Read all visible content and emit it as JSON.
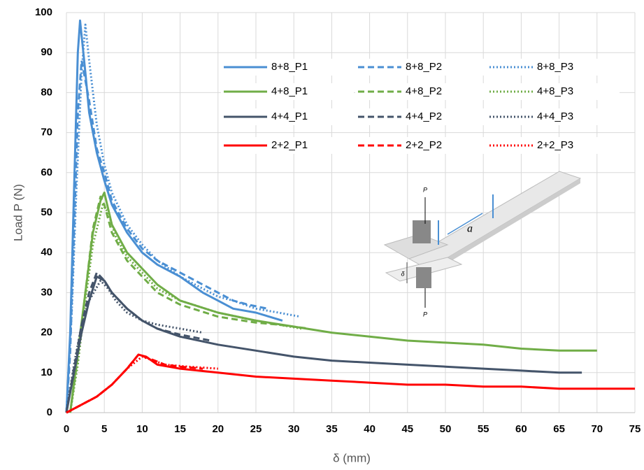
{
  "chart_data": {
    "type": "line",
    "x_label": "δ (mm)",
    "y_label": "Load P (N)",
    "xlim": [
      0,
      75
    ],
    "ylim": [
      0,
      100
    ],
    "xticks": [
      0,
      5,
      10,
      15,
      20,
      25,
      30,
      35,
      40,
      45,
      50,
      55,
      60,
      65,
      70,
      75
    ],
    "yticks": [
      0,
      10,
      20,
      30,
      40,
      50,
      60,
      70,
      80,
      90,
      100
    ],
    "grid": true,
    "series": [
      {
        "name": "8+8_P1",
        "color": "#4a8fd3",
        "dash": "solid",
        "x": [
          0,
          0.5,
          1,
          1.5,
          1.8,
          2.5,
          3,
          4,
          5,
          6,
          8,
          10,
          12,
          15,
          18,
          20,
          22,
          25,
          28.5
        ],
        "values": [
          0,
          20,
          55,
          90,
          98,
          85,
          75,
          65,
          58,
          52,
          45,
          40,
          37,
          34,
          30,
          28,
          26,
          25,
          23
        ]
      },
      {
        "name": "8+8_P2",
        "color": "#4a8fd3",
        "dash": "dashed",
        "x": [
          0,
          0.5,
          1,
          1.5,
          2,
          3,
          4,
          5,
          6,
          8,
          10,
          12,
          15,
          18,
          20,
          22,
          24,
          26.5
        ],
        "values": [
          0,
          15,
          45,
          75,
          88,
          78,
          66,
          60,
          53,
          46,
          41,
          38,
          35,
          32,
          30,
          28,
          27,
          26
        ]
      },
      {
        "name": "8+8_P3",
        "color": "#4a8fd3",
        "dash": "dotted",
        "x": [
          0,
          0.7,
          1.3,
          2,
          2.5,
          3,
          4,
          5,
          6,
          8,
          10,
          12,
          15,
          18,
          20,
          22,
          25,
          28,
          30.8
        ],
        "values": [
          0,
          25,
          55,
          85,
          97,
          88,
          72,
          62,
          55,
          47,
          42,
          38,
          34,
          31,
          29,
          28,
          26,
          25,
          24
        ]
      },
      {
        "name": "4+8_P1",
        "color": "#70ad47",
        "dash": "solid",
        "x": [
          0.5,
          1.5,
          2.5,
          3.5,
          4.5,
          5,
          6,
          8,
          10,
          12,
          15,
          20,
          25,
          30,
          35,
          40,
          45,
          50,
          55,
          60,
          65,
          70
        ],
        "values": [
          0,
          15,
          30,
          45,
          53,
          55,
          47,
          40,
          36,
          32,
          28,
          25,
          23,
          21.5,
          20,
          19,
          18,
          17.5,
          17,
          16,
          15.5,
          15.5
        ]
      },
      {
        "name": "4+8_P2",
        "color": "#70ad47",
        "dash": "dashed",
        "x": [
          0.5,
          1.5,
          2.5,
          3.5,
          4.5,
          5,
          6,
          8,
          10,
          12,
          15,
          20,
          25,
          28,
          32
        ],
        "values": [
          0,
          14,
          30,
          46,
          54,
          52,
          45,
          38,
          34,
          30,
          27,
          24,
          22.5,
          22,
          21
        ]
      },
      {
        "name": "4+8_P3",
        "color": "#70ad47",
        "dash": "dotted",
        "x": [
          0.5,
          1.5,
          2.5,
          3.5,
          4.8,
          5.5,
          6.5,
          8,
          10,
          12,
          15,
          20,
          25,
          28,
          31
        ],
        "values": [
          0,
          12,
          28,
          42,
          52,
          50,
          44,
          39,
          35,
          31,
          28,
          25,
          23,
          22,
          21
        ]
      },
      {
        "name": "4+4_P1",
        "color": "#44546a",
        "dash": "solid",
        "x": [
          0,
          1,
          2,
          3,
          4,
          5,
          6,
          8,
          10,
          12,
          15,
          20,
          25,
          30,
          35,
          40,
          45,
          50,
          55,
          60,
          65,
          68
        ],
        "values": [
          0,
          10,
          20,
          28,
          34,
          33,
          30,
          26,
          23,
          21,
          19,
          17,
          15.5,
          14,
          13,
          12.5,
          12,
          11.5,
          11,
          10.5,
          10,
          10
        ]
      },
      {
        "name": "4+4_P2",
        "color": "#44546a",
        "dash": "dashed",
        "x": [
          0,
          1,
          2,
          3,
          4,
          5,
          6,
          8,
          10,
          12,
          15,
          19
        ],
        "values": [
          0,
          11,
          22,
          30,
          35,
          33,
          30,
          26,
          23,
          21,
          19.5,
          18
        ]
      },
      {
        "name": "4+4_P3",
        "color": "#44546a",
        "dash": "dotted",
        "x": [
          0,
          1,
          2,
          3,
          4.5,
          5.5,
          6.5,
          8,
          10,
          12,
          15,
          18
        ],
        "values": [
          0,
          12,
          22,
          28,
          33,
          31,
          28,
          25,
          23,
          22,
          21,
          20
        ]
      },
      {
        "name": "2+2_P1",
        "color": "#ff0000",
        "dash": "solid",
        "x": [
          0,
          2,
          4,
          6,
          8,
          9.5,
          10.5,
          12,
          15,
          20,
          25,
          30,
          35,
          40,
          45,
          50,
          55,
          60,
          65,
          70,
          75
        ],
        "values": [
          0,
          2,
          4,
          7,
          11,
          14.5,
          14,
          12,
          11,
          10,
          9,
          8.5,
          8,
          7.5,
          7,
          7,
          6.5,
          6.5,
          6,
          6,
          6
        ]
      },
      {
        "name": "2+2_P2",
        "color": "#ff0000",
        "dash": "dashed",
        "x": [
          0,
          2,
          4,
          6,
          8,
          9.5,
          11,
          13,
          15,
          18
        ],
        "values": [
          0,
          2,
          4,
          7,
          11,
          14.5,
          13.5,
          12,
          11.5,
          11
        ]
      },
      {
        "name": "2+2_P3",
        "color": "#ff0000",
        "dash": "dotted",
        "x": [
          0,
          2,
          4,
          6,
          8,
          10,
          11.5,
          13,
          16,
          20
        ],
        "values": [
          0,
          2,
          4,
          7,
          11,
          14,
          13,
          12,
          11.5,
          11
        ]
      }
    ]
  },
  "inset": {
    "labels": [
      "P",
      "a",
      "δ",
      "P"
    ]
  }
}
